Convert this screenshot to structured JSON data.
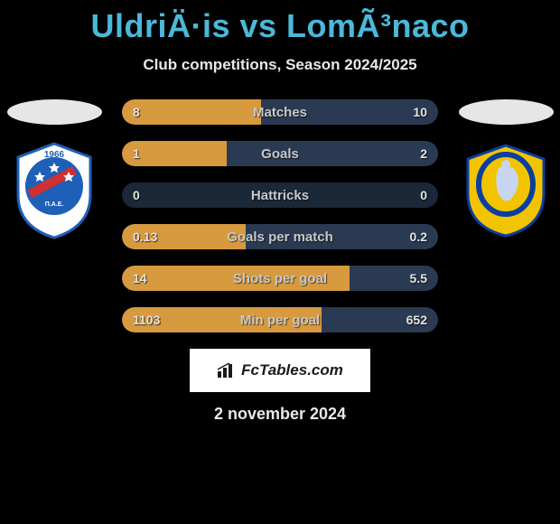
{
  "title": "UldriÄ·is vs LomÃ³naco",
  "subtitle": "Club competitions, Season 2024/2025",
  "date": "2 november 2024",
  "watermark": "FcTables.com",
  "colors": {
    "left_fill": "#d89a3f",
    "right_fill": "#2a3a52",
    "track": "#1a2838",
    "title": "#4cb8d8",
    "bg": "#000000"
  },
  "left_crest": {
    "shield_fill": "#ffffff",
    "circle_fill": "#1e5fb8",
    "stripe": "#d03030",
    "year": "1966"
  },
  "right_crest": {
    "shield_fill": "#f2c400",
    "ring": "#0a3fa0",
    "figure": "#c7d6ee"
  },
  "stats": [
    {
      "label": "Matches",
      "left_val": "8",
      "right_val": "10",
      "left_pct": 44,
      "right_pct": 56
    },
    {
      "label": "Goals",
      "left_val": "1",
      "right_val": "2",
      "left_pct": 33,
      "right_pct": 67
    },
    {
      "label": "Hattricks",
      "left_val": "0",
      "right_val": "0",
      "left_pct": 0,
      "right_pct": 0
    },
    {
      "label": "Goals per match",
      "left_val": "0.13",
      "right_val": "0.2",
      "left_pct": 39,
      "right_pct": 61
    },
    {
      "label": "Shots per goal",
      "left_val": "14",
      "right_val": "5.5",
      "left_pct": 72,
      "right_pct": 28
    },
    {
      "label": "Min per goal",
      "left_val": "1103",
      "right_val": "652",
      "left_pct": 63,
      "right_pct": 37
    }
  ]
}
